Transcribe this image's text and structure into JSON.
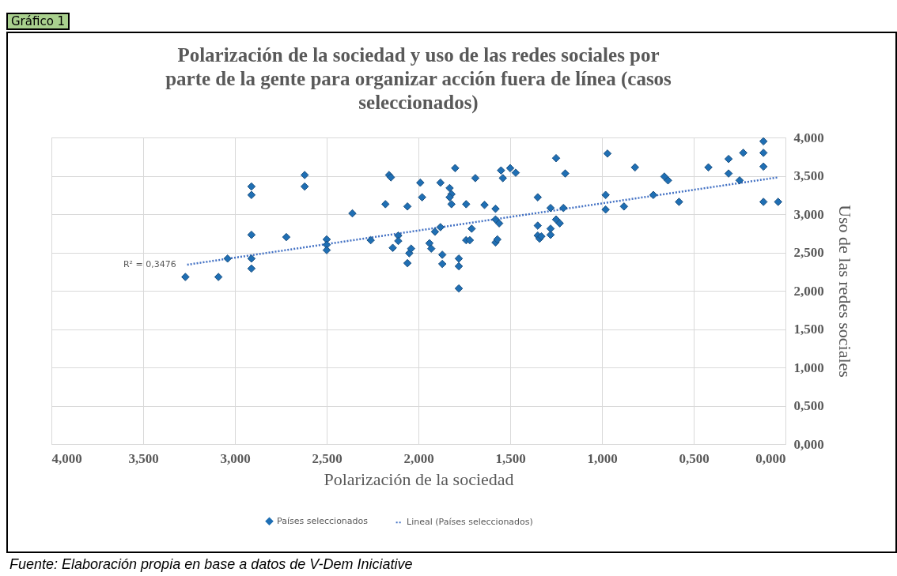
{
  "chart_data": {
    "type": "scatter",
    "title": "Polarización de la sociedad y uso de las redes sociales por parte de la gente para organizar acción fuera de línea (casos seleccionados)",
    "xlabel": "Polarización de la sociedad",
    "ylabel": "Uso de las redes sociales",
    "xlim": [
      4,
      0
    ],
    "ylim": [
      0,
      4
    ],
    "xticks": [
      {
        "value": 4,
        "label": "4,000"
      },
      {
        "value": 3.5,
        "label": "3,500"
      },
      {
        "value": 3,
        "label": "3,000"
      },
      {
        "value": 2.5,
        "label": "2,500"
      },
      {
        "value": 2,
        "label": "2,000"
      },
      {
        "value": 1.5,
        "label": "1,500"
      },
      {
        "value": 1,
        "label": "1,000"
      },
      {
        "value": 0.5,
        "label": "0,500"
      },
      {
        "value": 0,
        "label": "0,000"
      }
    ],
    "yticks": [
      {
        "value": 0,
        "label": "0,000"
      },
      {
        "value": 0.5,
        "label": "0,500"
      },
      {
        "value": 1,
        "label": "1,000"
      },
      {
        "value": 1.5,
        "label": "1,500"
      },
      {
        "value": 2,
        "label": "2,000"
      },
      {
        "value": 2.5,
        "label": "2,500"
      },
      {
        "value": 3,
        "label": "3,000"
      },
      {
        "value": 3.5,
        "label": "3,500"
      },
      {
        "value": 4,
        "label": "4,000"
      }
    ],
    "grid": true,
    "legend": "bottom",
    "series": [
      {
        "name": "Países seleccionados",
        "color": "#1f6fb4",
        "marker": "diamond",
        "x": [
          3.27,
          3.09,
          3.04,
          2.91,
          2.91,
          2.91,
          2.91,
          2.91,
          2.72,
          2.62,
          2.62,
          2.5,
          2.5,
          2.5,
          2.36,
          2.26,
          2.18,
          2.16,
          2.15,
          2.14,
          2.11,
          2.11,
          2.06,
          2.06,
          2.05,
          2.04,
          1.99,
          1.98,
          1.94,
          1.93,
          1.91,
          1.88,
          1.88,
          1.87,
          1.87,
          1.83,
          1.82,
          1.83,
          1.82,
          1.8,
          1.78,
          1.78,
          1.78,
          1.74,
          1.74,
          1.71,
          1.72,
          1.69,
          1.64,
          1.58,
          1.58,
          1.58,
          1.57,
          1.56,
          1.55,
          1.54,
          1.5,
          1.47,
          1.35,
          1.35,
          1.35,
          1.34,
          1.33,
          1.28,
          1.28,
          1.28,
          1.25,
          1.25,
          1.23,
          1.21,
          1.2,
          0.98,
          0.98,
          0.97,
          0.88,
          0.82,
          0.72,
          0.66,
          0.64,
          0.58,
          0.42,
          0.31,
          0.31,
          0.25,
          0.23,
          0.12,
          0.12,
          0.12,
          0.12,
          0.04
        ],
        "values": [
          2.18,
          2.18,
          2.42,
          3.36,
          3.25,
          2.73,
          2.42,
          2.29,
          2.7,
          3.51,
          3.36,
          2.67,
          2.6,
          2.53,
          3.01,
          2.66,
          3.13,
          3.51,
          3.48,
          2.56,
          2.72,
          2.65,
          3.1,
          2.36,
          2.49,
          2.55,
          3.41,
          3.22,
          2.62,
          2.55,
          2.77,
          2.83,
          3.41,
          2.35,
          2.47,
          3.34,
          3.26,
          3.22,
          3.13,
          3.6,
          2.42,
          2.32,
          2.03,
          3.13,
          2.66,
          2.81,
          2.66,
          3.47,
          3.12,
          3.07,
          2.93,
          2.63,
          2.67,
          2.88,
          3.57,
          3.47,
          3.6,
          3.54,
          3.22,
          2.85,
          2.72,
          2.68,
          2.71,
          3.08,
          2.73,
          2.81,
          3.73,
          2.93,
          2.88,
          3.08,
          3.53,
          3.25,
          3.06,
          3.79,
          3.1,
          3.61,
          3.25,
          3.49,
          3.44,
          3.16,
          3.61,
          3.72,
          3.53,
          3.44,
          3.8,
          3.95,
          3.8,
          3.62,
          3.16,
          3.16
        ]
      },
      {
        "name": "Lineal (Países seleccionados)",
        "color": "#4472c4",
        "type": "line",
        "line_style": "dotted",
        "x": [
          3.26,
          0.04
        ],
        "values": [
          2.34,
          3.48
        ]
      }
    ],
    "annotations": [
      "Gráfico 1",
      {
        "text": "R² = 0,3476",
        "x": 3.26,
        "y": 2.34
      },
      "Fuente: Elaboración propia en base a datos de V-Dem Iniciative"
    ]
  }
}
